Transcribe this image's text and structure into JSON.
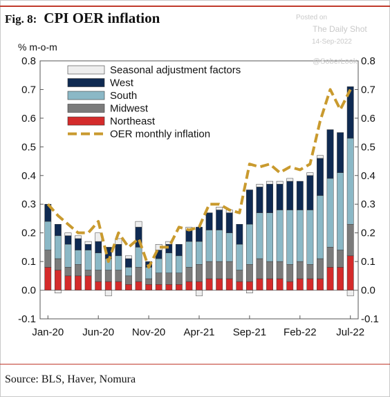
{
  "figure": {
    "number": "Fig. 8:",
    "title": "CPI OER inflation",
    "source": "Source: BLS, Haver, Nomura"
  },
  "watermark": {
    "line1": "Posted on",
    "line2": "The Daily Shot",
    "line3": "14-Sep-2022",
    "line4": "@SoberLook"
  },
  "colors": {
    "seasonal": "#eeeeee",
    "west": "#0f2a52",
    "south": "#8bb8c6",
    "midwest": "#7b7b7b",
    "northeast": "#d42b2b",
    "oer_line": "#c99a2e"
  },
  "chart_data": {
    "type": "bar",
    "stacked": true,
    "ylabel": "% m-o-m",
    "ylim": [
      -0.1,
      0.8
    ],
    "yticks": [
      "-0.1",
      "0.0",
      "0.1",
      "0.2",
      "0.3",
      "0.4",
      "0.5",
      "0.6",
      "0.7",
      "0.8"
    ],
    "x": [
      "Jan-20",
      "Feb-20",
      "Mar-20",
      "Apr-20",
      "May-20",
      "Jun-20",
      "Jul-20",
      "Aug-20",
      "Sep-20",
      "Oct-20",
      "Nov-20",
      "Dec-20",
      "Jan-21",
      "Feb-21",
      "Mar-21",
      "Apr-21",
      "May-21",
      "Jun-21",
      "Jul-21",
      "Aug-21",
      "Sep-21",
      "Oct-21",
      "Nov-21",
      "Dec-21",
      "Jan-22",
      "Feb-22",
      "Mar-22",
      "Apr-22",
      "May-22",
      "Jun-22",
      "Jul-22"
    ],
    "xtick_labels": [
      "Jan-20",
      "Jun-20",
      "Nov-20",
      "Apr-21",
      "Sep-21",
      "Feb-22",
      "Jul-22"
    ],
    "xtick_index": [
      0,
      5,
      10,
      15,
      20,
      25,
      30
    ],
    "legend_position": "top-left",
    "series": [
      {
        "name": "Seasonal adjustment factors",
        "kind": "bar",
        "color_key": "seasonal",
        "values": [
          0.0,
          -0.01,
          0.01,
          0.01,
          0.01,
          0.03,
          -0.02,
          0.02,
          0.01,
          0.02,
          0.0,
          0.02,
          0.01,
          0.0,
          0.01,
          -0.02,
          0.0,
          0.01,
          0.01,
          0.0,
          -0.01,
          0.01,
          0.01,
          0.01,
          0.01,
          0.0,
          0.01,
          0.01,
          0.0,
          0.0,
          -0.02
        ]
      },
      {
        "name": "West",
        "kind": "bar",
        "color_key": "west",
        "values": [
          0.06,
          0.04,
          0.03,
          0.04,
          0.02,
          0.04,
          0.04,
          0.04,
          0.03,
          0.07,
          0.02,
          0.03,
          0.03,
          0.04,
          0.04,
          0.05,
          0.06,
          0.07,
          0.07,
          0.07,
          0.12,
          0.09,
          0.1,
          0.09,
          0.1,
          0.1,
          0.12,
          0.13,
          0.17,
          0.14,
          0.18
        ]
      },
      {
        "name": "South",
        "kind": "bar",
        "color_key": "south",
        "values": [
          0.1,
          0.08,
          0.08,
          0.05,
          0.07,
          0.06,
          0.04,
          0.05,
          0.03,
          0.07,
          0.04,
          0.05,
          0.07,
          0.06,
          0.09,
          0.08,
          0.11,
          0.11,
          0.1,
          0.09,
          0.14,
          0.16,
          0.17,
          0.18,
          0.19,
          0.18,
          0.19,
          0.22,
          0.24,
          0.27,
          0.3
        ]
      },
      {
        "name": "Midwest",
        "kind": "bar",
        "color_key": "midwest",
        "values": [
          0.06,
          0.04,
          0.03,
          0.04,
          0.02,
          0.04,
          0.04,
          0.04,
          0.03,
          0.05,
          0.02,
          0.04,
          0.04,
          0.04,
          0.05,
          0.06,
          0.06,
          0.06,
          0.06,
          0.04,
          0.06,
          0.07,
          0.06,
          0.06,
          0.06,
          0.06,
          0.05,
          0.07,
          0.07,
          0.06,
          0.11
        ]
      },
      {
        "name": "Northeast",
        "kind": "bar",
        "color_key": "northeast",
        "values": [
          0.08,
          0.07,
          0.05,
          0.05,
          0.05,
          0.03,
          0.03,
          0.03,
          0.02,
          0.03,
          0.02,
          0.02,
          0.02,
          0.02,
          0.03,
          0.03,
          0.04,
          0.04,
          0.04,
          0.03,
          0.03,
          0.04,
          0.04,
          0.04,
          0.03,
          0.04,
          0.04,
          0.04,
          0.08,
          0.08,
          0.12
        ]
      },
      {
        "name": "OER monthly inflation",
        "kind": "line",
        "color_key": "oer_line",
        "dash": true,
        "values": [
          0.3,
          0.26,
          0.23,
          0.2,
          0.2,
          0.24,
          0.1,
          0.2,
          0.15,
          0.18,
          0.08,
          0.15,
          0.15,
          0.22,
          0.21,
          0.22,
          0.3,
          0.3,
          0.28,
          0.27,
          0.44,
          0.43,
          0.44,
          0.41,
          0.43,
          0.42,
          0.44,
          0.59,
          0.7,
          0.63,
          0.7
        ]
      }
    ]
  }
}
